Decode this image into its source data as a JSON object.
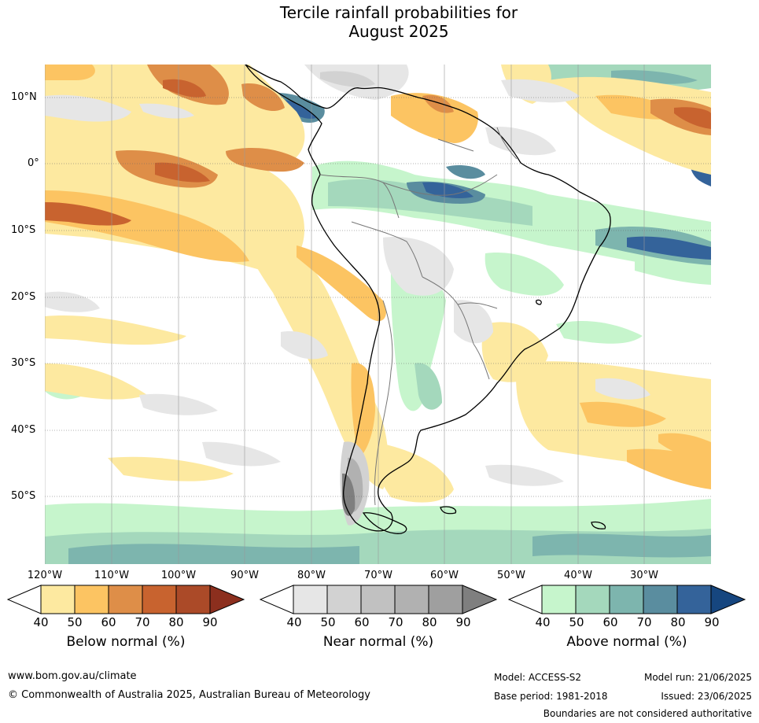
{
  "title_line1": "Tercile rainfall probabilities for",
  "title_line2": "August 2025",
  "map": {
    "lat_labels": [
      "10°N",
      "0°",
      "10°S",
      "20°S",
      "30°S",
      "40°S",
      "50°S"
    ],
    "lon_labels": [
      "120°W",
      "110°W",
      "100°W",
      "90°W",
      "80°W",
      "70°W",
      "60°W",
      "50°W",
      "40°W",
      "30°W"
    ]
  },
  "legends": {
    "below": {
      "title": "Below normal (%)",
      "ticks": [
        "40",
        "50",
        "60",
        "70",
        "80",
        "90"
      ],
      "colors": [
        "#ffffff",
        "#fde9a0",
        "#fcc462",
        "#de8e48",
        "#c8632f",
        "#ab4a28",
        "#8c2f1e"
      ]
    },
    "near": {
      "title": "Near normal (%)",
      "ticks": [
        "40",
        "50",
        "60",
        "70",
        "80",
        "90"
      ],
      "colors": [
        "#ffffff",
        "#e6e6e6",
        "#d2d2d2",
        "#c1c1c1",
        "#b1b1b1",
        "#9f9f9f",
        "#7f7f7f"
      ]
    },
    "above": {
      "title": "Above normal (%)",
      "ticks": [
        "40",
        "50",
        "60",
        "70",
        "80",
        "90"
      ],
      "colors": [
        "#ffffff",
        "#c6f5cc",
        "#a4d8bc",
        "#7db5ae",
        "#5a8d9f",
        "#34639a",
        "#16467f"
      ]
    }
  },
  "footer": {
    "website": "www.bom.gov.au/climate",
    "copyright": "© Commonwealth of Australia 2025, Australian Bureau of Meteorology",
    "model": "Model: ACCESS-S2",
    "model_run": "Model run: 21/06/2025",
    "base_period": "Base period: 1981-2018",
    "issued": "Issued: 23/06/2025",
    "disclaimer": "Boundaries are not considered authoritative"
  }
}
